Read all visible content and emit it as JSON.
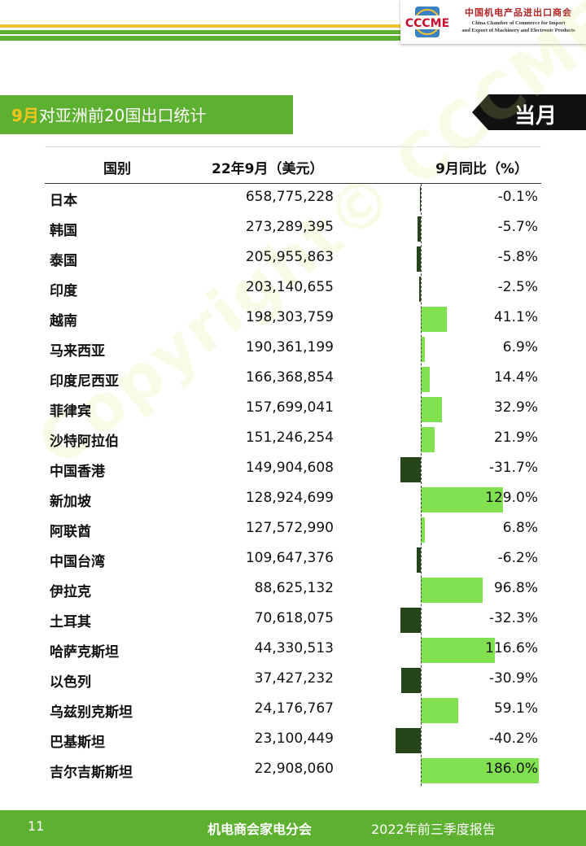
{
  "header": {
    "logo_cn": "中国机电产品进出口商会",
    "logo_en_line1": "China Chamber of Commerce for Import",
    "logo_en_line2": "and Export of Machinery and Electronic Products",
    "logo_mark": "CCCME"
  },
  "title": {
    "month": "9月",
    "text": "对亚洲前20国出口统计",
    "badge": "当月"
  },
  "table": {
    "col_country": "国别",
    "col_value": "22年9月（美元）",
    "col_yoy": "9月同比（%）",
    "rows": [
      {
        "country": "日本",
        "value": "658,775,228",
        "yoy": -0.1,
        "yoy_label": "-0.1%"
      },
      {
        "country": "韩国",
        "value": "273,289,395",
        "yoy": -5.7,
        "yoy_label": "-5.7%"
      },
      {
        "country": "泰国",
        "value": "205,955,863",
        "yoy": -5.8,
        "yoy_label": "-5.8%"
      },
      {
        "country": "印度",
        "value": "203,140,655",
        "yoy": -2.5,
        "yoy_label": "-2.5%"
      },
      {
        "country": "越南",
        "value": "198,303,759",
        "yoy": 41.1,
        "yoy_label": "41.1%"
      },
      {
        "country": "马来西亚",
        "value": "190,361,199",
        "yoy": 6.9,
        "yoy_label": "6.9%"
      },
      {
        "country": "印度尼西亚",
        "value": "166,368,854",
        "yoy": 14.4,
        "yoy_label": "14.4%"
      },
      {
        "country": "菲律宾",
        "value": "157,699,041",
        "yoy": 32.9,
        "yoy_label": "32.9%"
      },
      {
        "country": "沙特阿拉伯",
        "value": "151,246,254",
        "yoy": 21.9,
        "yoy_label": "21.9%"
      },
      {
        "country": "中国香港",
        "value": "149,904,608",
        "yoy": -31.7,
        "yoy_label": "-31.7%"
      },
      {
        "country": "新加坡",
        "value": "128,924,699",
        "yoy": 129.0,
        "yoy_label": "129.0%"
      },
      {
        "country": "阿联酋",
        "value": "127,572,990",
        "yoy": 6.8,
        "yoy_label": "6.8%"
      },
      {
        "country": "中国台湾",
        "value": "109,647,376",
        "yoy": -6.2,
        "yoy_label": "-6.2%"
      },
      {
        "country": "伊拉克",
        "value": "88,625,132",
        "yoy": 96.8,
        "yoy_label": "96.8%"
      },
      {
        "country": "土耳其",
        "value": "70,618,075",
        "yoy": -32.3,
        "yoy_label": "-32.3%"
      },
      {
        "country": "哈萨克斯坦",
        "value": "44,330,513",
        "yoy": 116.6,
        "yoy_label": "116.6%"
      },
      {
        "country": "以色列",
        "value": "37,427,232",
        "yoy": -30.9,
        "yoy_label": "-30.9%"
      },
      {
        "country": "乌兹别克斯坦",
        "value": "24,176,767",
        "yoy": 59.1,
        "yoy_label": "59.1%"
      },
      {
        "country": "巴基斯坦",
        "value": "23,100,449",
        "yoy": -40.2,
        "yoy_label": "-40.2%"
      },
      {
        "country": "吉尔吉斯斯坦",
        "value": "22,908,060",
        "yoy": 186.0,
        "yoy_label": "186.0%"
      }
    ]
  },
  "watermark": "Copyright© CCCME",
  "footer": {
    "page": "11",
    "dept": "机电商会家电分会",
    "report": "2022年前三季度报告"
  },
  "colors": {
    "green": "#5eb130",
    "bar_positive": "#80e050",
    "bar_negative": "#27451a",
    "month_highlight": "#f4c41c"
  }
}
